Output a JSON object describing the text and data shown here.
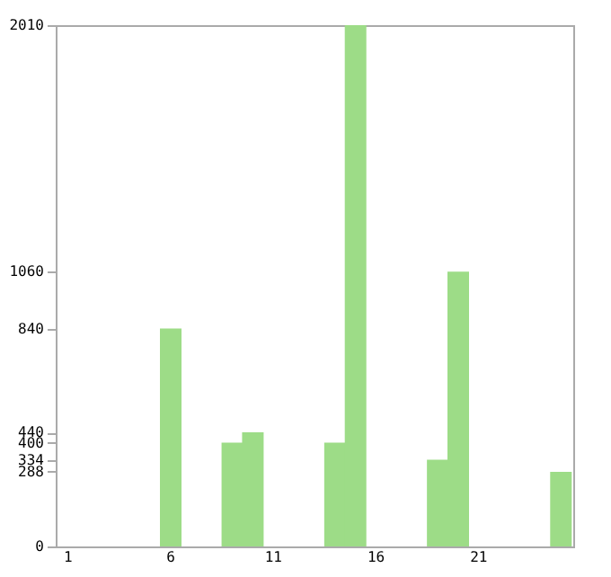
{
  "chart_data": {
    "type": "bar",
    "categories": [
      "1",
      null,
      null,
      null,
      null,
      "6",
      null,
      null,
      null,
      null,
      "11",
      null,
      null,
      null,
      null,
      "16",
      null,
      null,
      null,
      null,
      "21",
      null,
      null,
      null,
      null
    ],
    "values": [
      0,
      0,
      0,
      0,
      0,
      840,
      0,
      0,
      400,
      440,
      0,
      0,
      0,
      400,
      2010,
      0,
      0,
      0,
      334,
      1060,
      0,
      0,
      0,
      0,
      288
    ],
    "color": "#9ddc87",
    "ylim": [
      0,
      2010
    ],
    "yticks": [
      0,
      288,
      334,
      400,
      440,
      840,
      1060,
      2010
    ],
    "grid": false
  }
}
